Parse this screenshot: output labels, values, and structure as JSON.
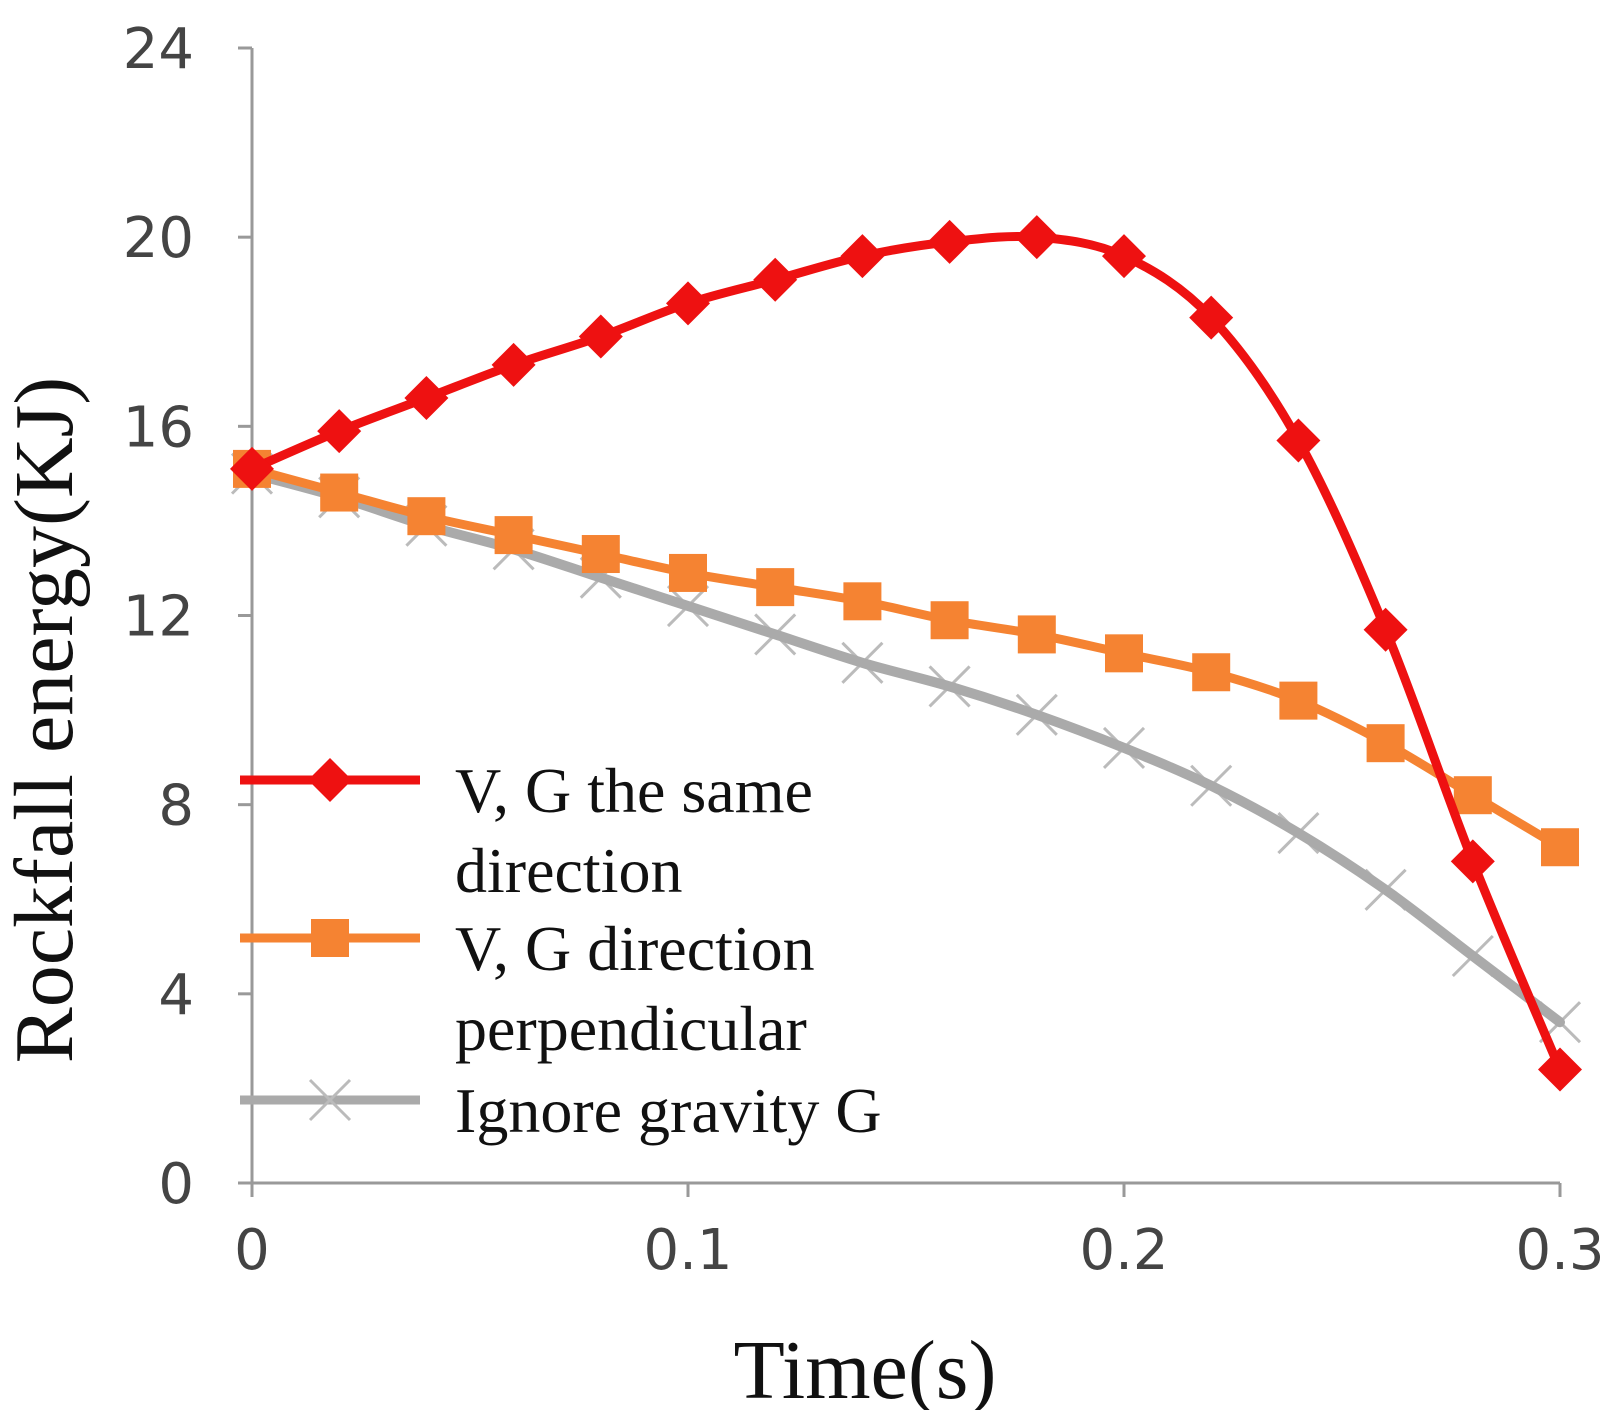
{
  "chart_data": {
    "type": "line",
    "title": "",
    "xlabel": "Time(s)",
    "ylabel": "Rockfall energy(KJ)",
    "xlim": [
      0,
      0.3
    ],
    "ylim": [
      0,
      24
    ],
    "xticks": [
      0,
      0.1,
      0.2,
      0.3
    ],
    "xtick_labels": [
      "0",
      "0.1",
      "0.2",
      "0.3"
    ],
    "yticks": [
      0,
      4,
      8,
      12,
      16,
      20,
      24
    ],
    "ytick_labels": [
      "0",
      "4",
      "8",
      "12",
      "16",
      "20",
      "24"
    ],
    "grid": false,
    "legend_position": "lower-left",
    "x": [
      0,
      0.02,
      0.04,
      0.06,
      0.08,
      0.1,
      0.12,
      0.14,
      0.16,
      0.18,
      0.2,
      0.22,
      0.24,
      0.26,
      0.28,
      0.3
    ],
    "series": [
      {
        "name": "V, G the same direction",
        "legend_lines": [
          "V, G the same",
          "direction"
        ],
        "color": "#ee1111",
        "marker": "diamond",
        "values": [
          15.1,
          15.9,
          16.6,
          17.3,
          17.9,
          18.6,
          19.1,
          19.6,
          19.9,
          20.0,
          19.6,
          18.3,
          15.7,
          11.7,
          6.8,
          2.4
        ]
      },
      {
        "name": "V, G direction perpendicular",
        "legend_lines": [
          "V, G direction",
          "perpendicular"
        ],
        "color": "#f58332",
        "marker": "square",
        "values": [
          15.1,
          14.6,
          14.1,
          13.7,
          13.3,
          12.9,
          12.6,
          12.3,
          11.9,
          11.6,
          11.2,
          10.8,
          10.2,
          9.3,
          8.2,
          7.1
        ]
      },
      {
        "name": "Ignore gravity G",
        "legend_lines": [
          "Ignore gravity G"
        ],
        "color": "#aaaaaa",
        "marker": "x",
        "values": [
          15.0,
          14.5,
          13.9,
          13.4,
          12.8,
          12.2,
          11.6,
          11.0,
          10.5,
          9.9,
          9.2,
          8.4,
          7.4,
          6.2,
          4.8,
          3.4
        ]
      }
    ]
  }
}
